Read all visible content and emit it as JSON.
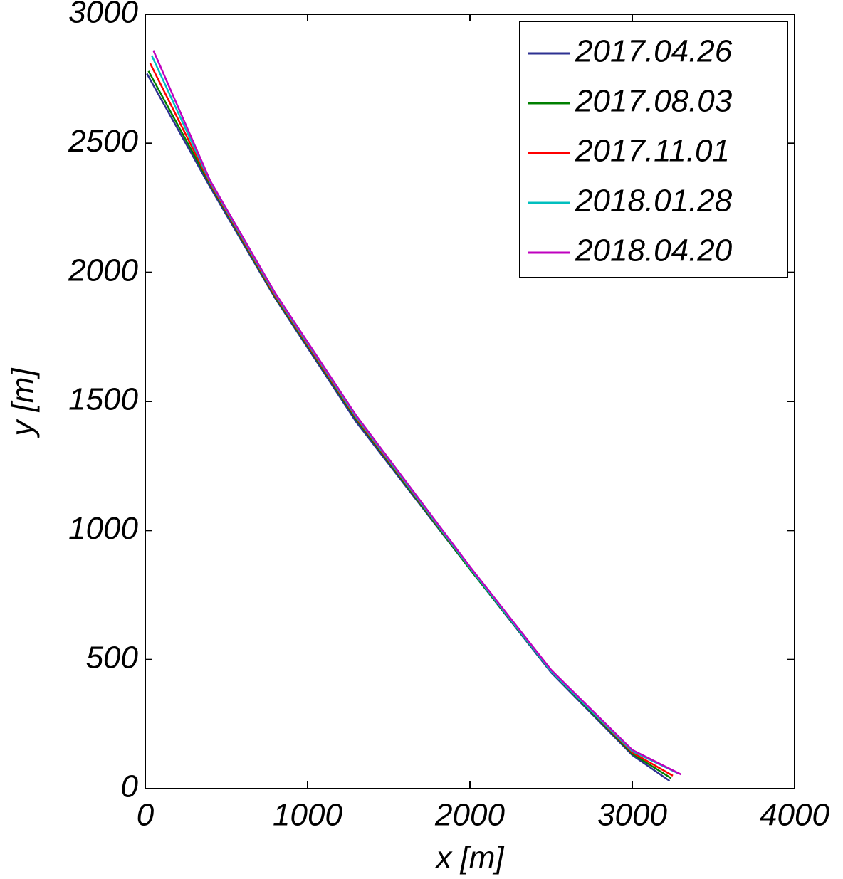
{
  "chart_data": {
    "type": "line",
    "xlabel": "x [m]",
    "ylabel": "y [m]",
    "xlim": [
      0,
      4000
    ],
    "xticks": [
      0,
      1000,
      2000,
      3000,
      4000
    ],
    "ylim": [
      0,
      3000
    ],
    "yticks": [
      0,
      500,
      1000,
      1500,
      2000,
      2500,
      3000
    ],
    "legend": "upper right",
    "grid": false,
    "series": [
      {
        "name": "2017.04.26",
        "color": "#2e3192",
        "x": [
          10,
          400,
          800,
          1300,
          2000,
          2500,
          3000,
          3230
        ],
        "values": [
          2770,
          2330,
          1900,
          1420,
          850,
          450,
          130,
          30
        ]
      },
      {
        "name": "2017.08.03",
        "color": "#008000",
        "x": [
          20,
          400,
          800,
          1300,
          2000,
          2500,
          3000,
          3240
        ],
        "values": [
          2780,
          2340,
          1905,
          1430,
          850,
          455,
          135,
          40
        ]
      },
      {
        "name": "2017.11.01",
        "color": "#ff0000",
        "x": [
          30,
          400,
          800,
          1300,
          2000,
          2500,
          3000,
          3250
        ],
        "values": [
          2810,
          2345,
          1910,
          1435,
          855,
          460,
          140,
          50
        ]
      },
      {
        "name": "2018.01.28",
        "color": "#00bfbf",
        "x": [
          40,
          400,
          800,
          1300,
          2000,
          2500,
          3000,
          3280
        ],
        "values": [
          2840,
          2350,
          1915,
          1440,
          855,
          455,
          145,
          60
        ]
      },
      {
        "name": "2018.04.20",
        "color": "#bf00bf",
        "x": [
          50,
          400,
          800,
          1300,
          2000,
          2500,
          3000,
          3300
        ],
        "values": [
          2860,
          2355,
          1920,
          1445,
          860,
          460,
          150,
          55
        ]
      }
    ]
  }
}
